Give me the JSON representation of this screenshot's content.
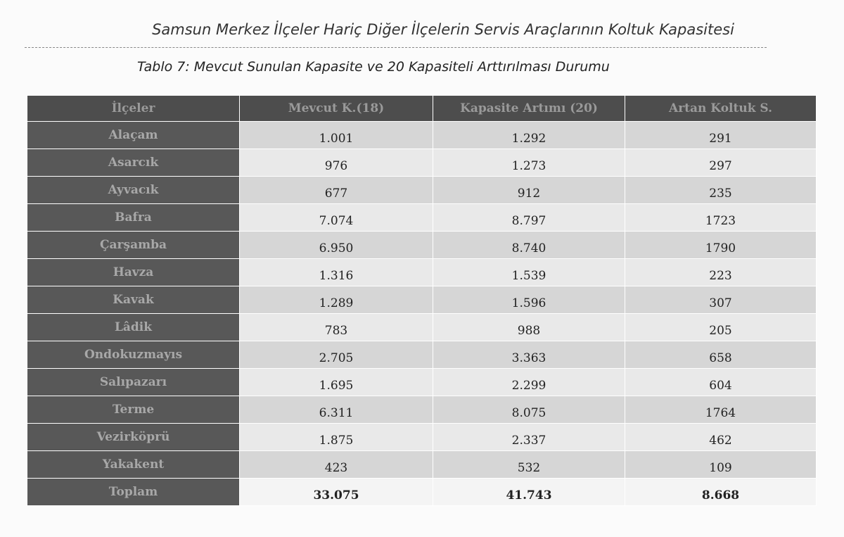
{
  "header": {
    "title": "Samsun Merkez İlçeler Hariç Diğer İlçelerin Servis Araçlarının Koltuk Kapasitesi"
  },
  "caption": "Tablo 7: Mevcut Sunulan Kapasite ve 20 Kapasiteli Arttırılması Durumu",
  "table": {
    "columns": [
      "İlçeler",
      "Mevcut K.(18)",
      "Kapasite Artımı (20)",
      "Artan Koltuk S."
    ],
    "rows": [
      [
        "Alaçam",
        "1.001",
        "1.292",
        "291"
      ],
      [
        "Asarcık",
        "976",
        "1.273",
        "297"
      ],
      [
        "Ayvacık",
        "677",
        "912",
        "235"
      ],
      [
        "Bafra",
        "7.074",
        "8.797",
        "1723"
      ],
      [
        "Çarşamba",
        "6.950",
        "8.740",
        "1790"
      ],
      [
        "Havza",
        "1.316",
        "1.539",
        "223"
      ],
      [
        "Kavak",
        "1.289",
        "1.596",
        "307"
      ],
      [
        "Lâdik",
        "783",
        "988",
        "205"
      ],
      [
        "Ondokuzmayıs",
        "2.705",
        "3.363",
        "658"
      ],
      [
        "Salıpazarı",
        "1.695",
        "2.299",
        "604"
      ],
      [
        "Terme",
        "6.311",
        "8.075",
        "1764"
      ],
      [
        "Vezirköprü",
        "1.875",
        "2.337",
        "462"
      ],
      [
        "Yakakent",
        "423",
        "532",
        "109"
      ],
      [
        "Toplam",
        "33.075",
        "41.743",
        "8.668"
      ]
    ]
  }
}
